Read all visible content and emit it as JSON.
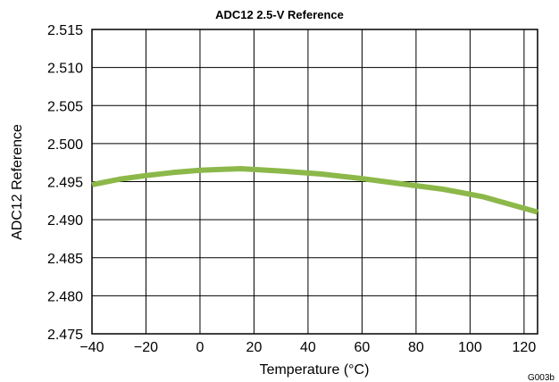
{
  "chart_data": {
    "type": "line",
    "title": "ADC12  2.5-V Reference",
    "xlabel": "Temperature (°C)",
    "ylabel": "ADC12 Reference",
    "xlim": [
      -40,
      125
    ],
    "ylim": [
      2.475,
      2.515
    ],
    "xticks": [
      "−40",
      "−20",
      "0",
      "20",
      "40",
      "60",
      "80",
      "100",
      "120"
    ],
    "xtick_values": [
      -40,
      -20,
      0,
      20,
      40,
      60,
      80,
      100,
      120
    ],
    "yticks": [
      "2.515",
      "2.510",
      "2.505",
      "2.500",
      "2.495",
      "2.490",
      "2.485",
      "2.480",
      "2.475"
    ],
    "ytick_values": [
      2.515,
      2.51,
      2.505,
      2.5,
      2.495,
      2.49,
      2.485,
      2.48,
      2.475
    ],
    "grid": true,
    "series": [
      {
        "color": "#8cb84a",
        "x": [
          -40,
          -30,
          -20,
          -10,
          0,
          15,
          30,
          45,
          60,
          75,
          90,
          105,
          125
        ],
        "y": [
          2.4946,
          2.4953,
          2.4958,
          2.4962,
          2.4965,
          2.4967,
          2.4964,
          2.496,
          2.4954,
          2.4947,
          2.494,
          2.493,
          2.491
        ]
      }
    ],
    "figure_code": "G003b"
  }
}
